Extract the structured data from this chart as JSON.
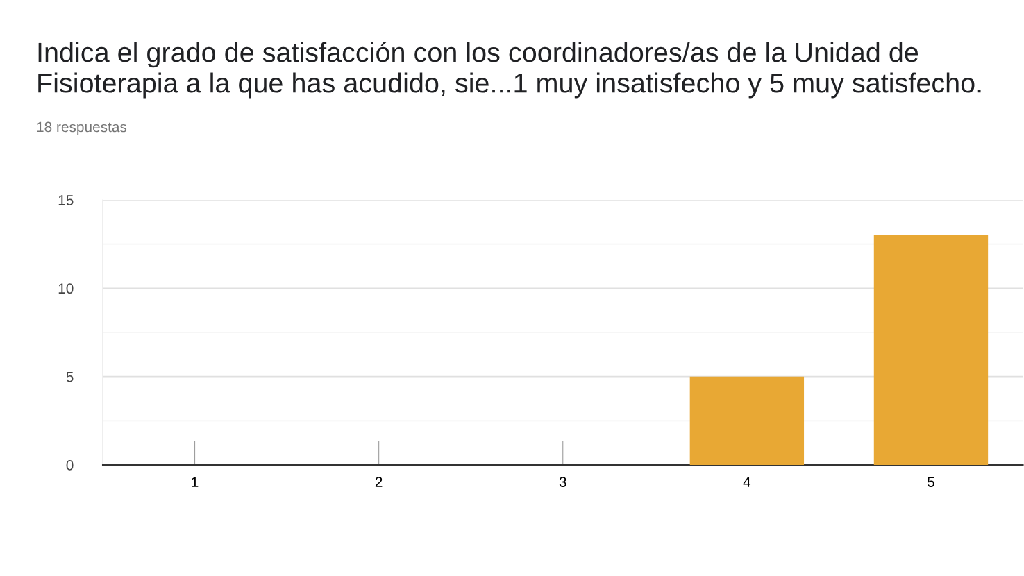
{
  "chart_data": {
    "type": "bar",
    "title": "Indica el grado de satisfacción con los coordinadores/as de la Unidad de Fisioterapia a la que has acudido, sie...1 muy insatisfecho y 5 muy satisfecho.",
    "subtitle": "18 respuestas",
    "categories": [
      "1",
      "2",
      "3",
      "4",
      "5"
    ],
    "values": [
      0,
      0,
      0,
      5,
      13
    ],
    "color": "#e8a834",
    "ylim": [
      0,
      15
    ],
    "yticks": [
      0,
      {
        "value": 2.5,
        "label": null
      },
      5,
      {
        "value": 7.5,
        "label": null
      },
      10,
      {
        "value": 12.5,
        "label": null
      },
      15
    ],
    "grid": "y"
  }
}
